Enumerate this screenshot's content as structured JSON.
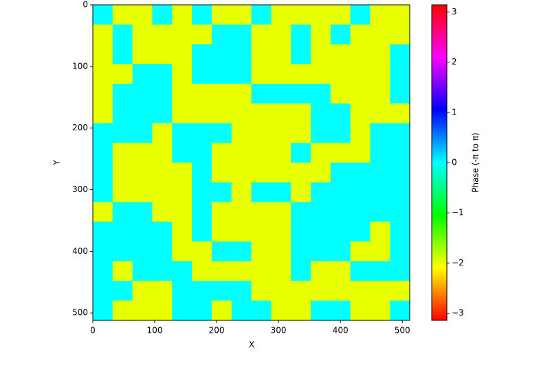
{
  "chart_data": {
    "type": "heatmap",
    "xlabel": "X",
    "ylabel": "Y",
    "xlim": [
      0,
      512
    ],
    "ylim": [
      512,
      0
    ],
    "xticks": [
      0,
      100,
      200,
      300,
      400,
      500
    ],
    "yticks": [
      0,
      100,
      200,
      300,
      400,
      500
    ],
    "z": [
      [
        0,
        -2,
        -2,
        0,
        -2,
        0,
        -2,
        -2,
        0,
        -2,
        -2,
        -2,
        -2,
        0,
        -2,
        -2
      ],
      [
        -2,
        0,
        -2,
        -2,
        -2,
        -2,
        0,
        0,
        -2,
        -2,
        0,
        -2,
        0,
        -2,
        -2,
        -2
      ],
      [
        -2,
        0,
        -2,
        -2,
        -2,
        0,
        0,
        0,
        -2,
        -2,
        0,
        -2,
        -2,
        -2,
        -2,
        0
      ],
      [
        -2,
        -2,
        0,
        0,
        -2,
        0,
        0,
        0,
        -2,
        -2,
        -2,
        -2,
        -2,
        -2,
        -2,
        0
      ],
      [
        -2,
        0,
        0,
        0,
        -2,
        -2,
        -2,
        -2,
        0,
        0,
        0,
        0,
        -2,
        -2,
        -2,
        0
      ],
      [
        -2,
        0,
        0,
        0,
        -2,
        -2,
        -2,
        -2,
        -2,
        -2,
        -2,
        0,
        0,
        -2,
        -2,
        -2
      ],
      [
        0,
        0,
        0,
        -2,
        0,
        0,
        0,
        -2,
        -2,
        -2,
        -2,
        0,
        0,
        -2,
        0,
        0
      ],
      [
        0,
        -2,
        -2,
        -2,
        0,
        0,
        -2,
        -2,
        -2,
        -2,
        0,
        -2,
        -2,
        -2,
        0,
        0
      ],
      [
        0,
        -2,
        -2,
        -2,
        -2,
        0,
        -2,
        -2,
        -2,
        -2,
        -2,
        -2,
        0,
        0,
        0,
        0
      ],
      [
        0,
        -2,
        -2,
        -2,
        -2,
        0,
        0,
        -2,
        0,
        0,
        -2,
        0,
        0,
        0,
        0,
        0
      ],
      [
        -2,
        0,
        0,
        -2,
        -2,
        0,
        -2,
        -2,
        -2,
        -2,
        0,
        0,
        0,
        0,
        0,
        0
      ],
      [
        0,
        0,
        0,
        0,
        -2,
        0,
        -2,
        -2,
        -2,
        -2,
        0,
        0,
        0,
        0,
        -2,
        0
      ],
      [
        0,
        0,
        0,
        0,
        -2,
        -2,
        0,
        0,
        -2,
        -2,
        0,
        0,
        0,
        -2,
        -2,
        0
      ],
      [
        0,
        -2,
        0,
        0,
        0,
        -2,
        -2,
        -2,
        -2,
        -2,
        0,
        -2,
        -2,
        0,
        0,
        0
      ],
      [
        0,
        0,
        -2,
        -2,
        0,
        0,
        0,
        0,
        -2,
        -2,
        -2,
        -2,
        -2,
        -2,
        -2,
        -2
      ],
      [
        0,
        -2,
        -2,
        -2,
        0,
        0,
        -2,
        0,
        0,
        -2,
        -2,
        0,
        0,
        -2,
        -2,
        0
      ]
    ],
    "colormap": "hsv",
    "colorbar": {
      "label": "Phase (-π to π)",
      "lim": [
        -3.14159,
        3.14159
      ],
      "ticks": [
        {
          "value": -3,
          "label": "−3"
        },
        {
          "value": -2,
          "label": "−2"
        },
        {
          "value": -1,
          "label": "−1"
        },
        0,
        1,
        2,
        3
      ]
    }
  }
}
